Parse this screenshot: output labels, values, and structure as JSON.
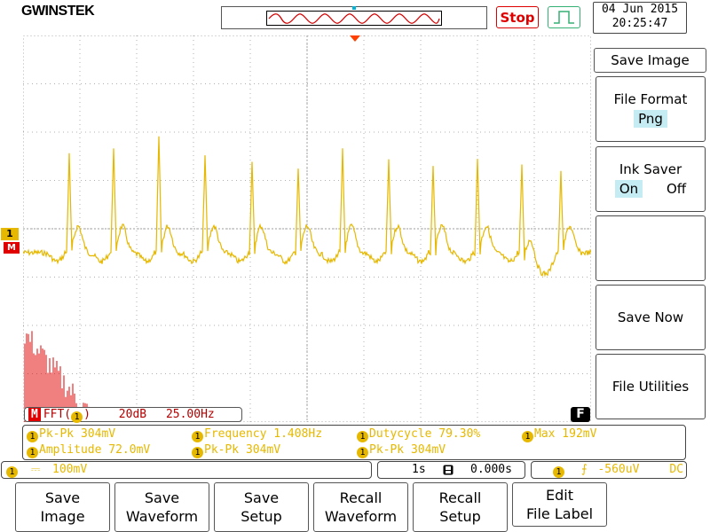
{
  "header": {
    "logo": "GWINSTEK",
    "run_state": "Stop",
    "date": "04 Jun 2015",
    "time": "20:25:47"
  },
  "menu": {
    "title": "Save Image",
    "file_format": {
      "label": "File Format",
      "value": "Png"
    },
    "ink_saver": {
      "label": "Ink Saver",
      "on": "On",
      "off": "Off",
      "selected": "On"
    },
    "save_now": "Save Now",
    "file_utilities": "File Utilities"
  },
  "fft": {
    "badge": "M",
    "label": "FFT(",
    "channel": "1",
    "close": ")",
    "scale": "20dB",
    "span": "25.00Hz",
    "f_badge": "F"
  },
  "markers": {
    "ch1": "1",
    "math": "M"
  },
  "measurements": [
    {
      "text": "Pk-Pk 304mV"
    },
    {
      "text": "Frequency 1.408Hz"
    },
    {
      "text": "Dutycycle 79.30%"
    },
    {
      "text": "Max 192mV"
    },
    {
      "text": "Amplitude 72.0mV"
    },
    {
      "text": "Pk-Pk 304mV"
    },
    {
      "text": "Pk-Pk 304mV"
    }
  ],
  "status": {
    "ch1_num": "1",
    "coupling": "⎓",
    "ch1_scale": "100mV",
    "timebase": "1s",
    "position": "0.000s",
    "trig_num": "1",
    "trig_slope": "⨍",
    "trig_level": "-560uV",
    "trig_coupling": "DC"
  },
  "softkeys": [
    {
      "line1": "Save",
      "line2": "Image"
    },
    {
      "line1": "Save",
      "line2": "Waveform"
    },
    {
      "line1": "Save",
      "line2": "Setup"
    },
    {
      "line1": "Recall",
      "line2": "Waveform"
    },
    {
      "line1": "Recall",
      "line2": "Setup"
    },
    {
      "line1": "Edit",
      "line2": "File Label"
    }
  ],
  "colors": {
    "ch1": "#e6b800",
    "math": "#e00000",
    "grid": "#b0b0b0"
  }
}
